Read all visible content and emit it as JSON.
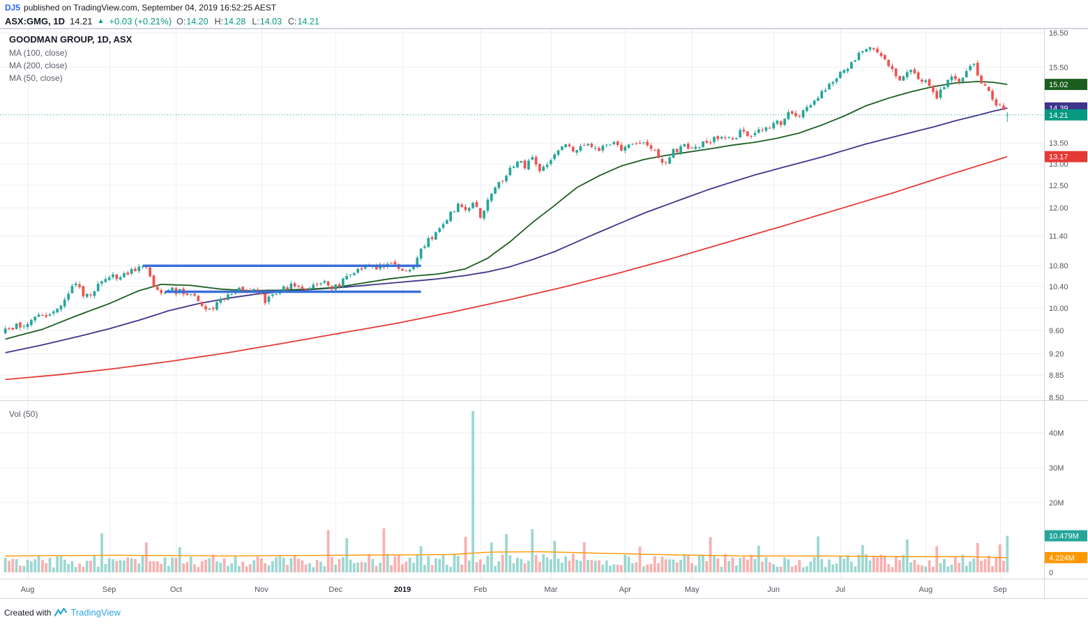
{
  "page": {
    "publish_bar": {
      "author": "DJ5",
      "text": "published on TradingView.com, September 04, 2019 16:52:25 AEST"
    },
    "symbol_bar": {
      "symbol": "ASX:GMG, 1D",
      "last": "14.21",
      "arrow": "▲",
      "change": "+0.03 (+0.21%)",
      "ohlc": [
        {
          "label": "O:",
          "value": "14.20"
        },
        {
          "label": "H:",
          "value": "14.28"
        },
        {
          "label": "L:",
          "value": "14.03"
        },
        {
          "label": "C:",
          "value": "14.21"
        }
      ]
    },
    "legend": {
      "title": "GOODMAN GROUP, 1D, ASX",
      "overlays": [
        "MA (100, close)",
        "MA (200, close)",
        "MA (50, close)"
      ]
    },
    "volume_legend": "Vol (50)",
    "footer": {
      "created_with": "Created with",
      "brand": "TradingView"
    }
  },
  "chart_data": {
    "type": "candlestick",
    "title": "GOODMAN GROUP, 1D, ASX",
    "symbol": "ASX:GMG",
    "timeframe": "1D",
    "exchange": "ASX",
    "x_range": "Aug 2018 - Sep 2019",
    "bars": 271,
    "price_scale": {
      "min": 8.5,
      "max": 16.5,
      "log": true,
      "ticks": [
        16.5,
        15.5,
        13.5,
        13.0,
        12.5,
        12.0,
        11.4,
        10.8,
        10.4,
        10.0,
        9.6,
        9.2,
        8.85,
        8.5
      ]
    },
    "price_labels": [
      {
        "value": "15.02",
        "price": 15.02,
        "color": "#1b5e20",
        "series": "MA50"
      },
      {
        "value": "14.39",
        "price": 14.39,
        "color": "#3d348b",
        "series": "MA100"
      },
      {
        "value": "14.21",
        "price": 14.21,
        "color": "#089981",
        "series": "last-price"
      },
      {
        "value": "13.17",
        "price": 13.17,
        "color": "#e53935",
        "series": "MA200"
      }
    ],
    "last_price_line": 14.21,
    "last_bar": {
      "open": 14.2,
      "high": 14.28,
      "low": 14.03,
      "close": 14.21,
      "volume_m": 10.479
    },
    "months": [
      {
        "label": "Aug",
        "bar": 6
      },
      {
        "label": "Sep",
        "bar": 28
      },
      {
        "label": "Oct",
        "bar": 46
      },
      {
        "label": "Nov",
        "bar": 69
      },
      {
        "label": "Dec",
        "bar": 89
      },
      {
        "label": "2019",
        "bar": 107,
        "year": true
      },
      {
        "label": "Feb",
        "bar": 128
      },
      {
        "label": "Mar",
        "bar": 147
      },
      {
        "label": "Apr",
        "bar": 167
      },
      {
        "label": "May",
        "bar": 185
      },
      {
        "label": "Jun",
        "bar": 207
      },
      {
        "label": "Jul",
        "bar": 225
      },
      {
        "label": "Aug",
        "bar": 248
      },
      {
        "label": "Sep",
        "bar": 268
      }
    ],
    "price_anchors": [
      [
        0,
        9.6
      ],
      [
        4,
        9.7
      ],
      [
        8,
        9.8
      ],
      [
        12,
        9.92
      ],
      [
        15,
        10.02
      ],
      [
        17,
        10.32
      ],
      [
        19,
        10.45
      ],
      [
        21,
        10.22
      ],
      [
        23,
        10.28
      ],
      [
        26,
        10.45
      ],
      [
        28,
        10.55
      ],
      [
        31,
        10.62
      ],
      [
        34,
        10.68
      ],
      [
        37,
        10.76
      ],
      [
        39,
        10.65
      ],
      [
        40,
        10.38
      ],
      [
        42,
        10.24
      ],
      [
        45,
        10.33
      ],
      [
        48,
        10.28
      ],
      [
        51,
        10.2
      ],
      [
        54,
        10.0
      ],
      [
        55,
        9.97
      ],
      [
        57,
        10.08
      ],
      [
        60,
        10.26
      ],
      [
        63,
        10.34
      ],
      [
        66,
        10.3
      ],
      [
        68,
        10.3
      ],
      [
        70,
        10.12
      ],
      [
        72,
        10.26
      ],
      [
        75,
        10.35
      ],
      [
        77,
        10.42
      ],
      [
        80,
        10.34
      ],
      [
        83,
        10.42
      ],
      [
        86,
        10.45
      ],
      [
        88,
        10.36
      ],
      [
        90,
        10.45
      ],
      [
        92,
        10.55
      ],
      [
        95,
        10.74
      ],
      [
        98,
        10.85
      ],
      [
        100,
        10.72
      ],
      [
        102,
        10.82
      ],
      [
        104,
        10.88
      ],
      [
        106,
        10.72
      ],
      [
        108,
        10.68
      ],
      [
        110,
        10.74
      ],
      [
        112,
        11.12
      ],
      [
        114,
        11.3
      ],
      [
        116,
        11.48
      ],
      [
        118,
        11.65
      ],
      [
        120,
        11.88
      ],
      [
        122,
        12.05
      ],
      [
        124,
        11.92
      ],
      [
        126,
        12.12
      ],
      [
        128,
        11.82
      ],
      [
        130,
        12.18
      ],
      [
        132,
        12.42
      ],
      [
        134,
        12.6
      ],
      [
        136,
        12.88
      ],
      [
        138,
        13.08
      ],
      [
        140,
        12.95
      ],
      [
        142,
        13.22
      ],
      [
        144,
        12.82
      ],
      [
        146,
        12.95
      ],
      [
        148,
        13.28
      ],
      [
        151,
        13.42
      ],
      [
        154,
        13.3
      ],
      [
        157,
        13.48
      ],
      [
        160,
        13.38
      ],
      [
        163,
        13.52
      ],
      [
        166,
        13.36
      ],
      [
        169,
        13.46
      ],
      [
        172,
        13.54
      ],
      [
        174,
        13.38
      ],
      [
        176,
        13.12
      ],
      [
        178,
        13.05
      ],
      [
        180,
        13.28
      ],
      [
        183,
        13.42
      ],
      [
        186,
        13.38
      ],
      [
        189,
        13.52
      ],
      [
        192,
        13.65
      ],
      [
        195,
        13.58
      ],
      [
        198,
        13.76
      ],
      [
        201,
        13.7
      ],
      [
        204,
        13.85
      ],
      [
        207,
        13.95
      ],
      [
        209,
        14.02
      ],
      [
        211,
        14.22
      ],
      [
        213,
        14.12
      ],
      [
        215,
        14.3
      ],
      [
        217,
        14.5
      ],
      [
        219,
        14.68
      ],
      [
        221,
        14.88
      ],
      [
        223,
        15.05
      ],
      [
        225,
        15.3
      ],
      [
        227,
        15.48
      ],
      [
        229,
        15.7
      ],
      [
        231,
        15.95
      ],
      [
        233,
        16.1
      ],
      [
        235,
        15.92
      ],
      [
        237,
        15.72
      ],
      [
        239,
        15.45
      ],
      [
        241,
        15.18
      ],
      [
        243,
        15.42
      ],
      [
        245,
        15.28
      ],
      [
        247,
        15.12
      ],
      [
        249,
        15.05
      ],
      [
        251,
        14.68
      ],
      [
        253,
        14.98
      ],
      [
        255,
        15.22
      ],
      [
        257,
        15.08
      ],
      [
        259,
        15.38
      ],
      [
        261,
        15.52
      ],
      [
        262,
        15.3
      ],
      [
        264,
        14.92
      ],
      [
        266,
        14.62
      ],
      [
        268,
        14.42
      ],
      [
        270,
        14.21
      ]
    ],
    "ma50": {
      "name": "MA (50, close)",
      "color": "#1b5e20",
      "last": 15.02,
      "anchors": [
        [
          0,
          9.45
        ],
        [
          10,
          9.62
        ],
        [
          20,
          9.88
        ],
        [
          28,
          10.08
        ],
        [
          36,
          10.32
        ],
        [
          42,
          10.44
        ],
        [
          50,
          10.42
        ],
        [
          58,
          10.35
        ],
        [
          66,
          10.32
        ],
        [
          74,
          10.33
        ],
        [
          82,
          10.35
        ],
        [
          89,
          10.38
        ],
        [
          96,
          10.46
        ],
        [
          103,
          10.54
        ],
        [
          110,
          10.6
        ],
        [
          117,
          10.64
        ],
        [
          124,
          10.74
        ],
        [
          130,
          10.95
        ],
        [
          136,
          11.28
        ],
        [
          142,
          11.68
        ],
        [
          148,
          12.05
        ],
        [
          154,
          12.45
        ],
        [
          160,
          12.72
        ],
        [
          166,
          12.95
        ],
        [
          172,
          13.1
        ],
        [
          178,
          13.2
        ],
        [
          184,
          13.28
        ],
        [
          190,
          13.36
        ],
        [
          196,
          13.45
        ],
        [
          202,
          13.52
        ],
        [
          208,
          13.62
        ],
        [
          214,
          13.75
        ],
        [
          220,
          13.95
        ],
        [
          226,
          14.18
        ],
        [
          232,
          14.45
        ],
        [
          238,
          14.65
        ],
        [
          244,
          14.82
        ],
        [
          250,
          14.96
        ],
        [
          256,
          15.06
        ],
        [
          262,
          15.1
        ],
        [
          266,
          15.08
        ],
        [
          270,
          15.02
        ]
      ]
    },
    "ma100": {
      "name": "MA (100, close)",
      "color": "#3d348b",
      "last": 14.39,
      "anchors": [
        [
          0,
          9.22
        ],
        [
          10,
          9.35
        ],
        [
          20,
          9.5
        ],
        [
          28,
          9.63
        ],
        [
          36,
          9.78
        ],
        [
          44,
          9.95
        ],
        [
          52,
          10.08
        ],
        [
          60,
          10.18
        ],
        [
          68,
          10.26
        ],
        [
          76,
          10.31
        ],
        [
          84,
          10.35
        ],
        [
          92,
          10.39
        ],
        [
          100,
          10.44
        ],
        [
          108,
          10.49
        ],
        [
          116,
          10.54
        ],
        [
          124,
          10.61
        ],
        [
          130,
          10.68
        ],
        [
          136,
          10.78
        ],
        [
          142,
          10.92
        ],
        [
          148,
          11.08
        ],
        [
          154,
          11.28
        ],
        [
          160,
          11.48
        ],
        [
          166,
          11.68
        ],
        [
          172,
          11.88
        ],
        [
          178,
          12.06
        ],
        [
          184,
          12.24
        ],
        [
          190,
          12.42
        ],
        [
          196,
          12.58
        ],
        [
          202,
          12.74
        ],
        [
          208,
          12.88
        ],
        [
          214,
          13.02
        ],
        [
          220,
          13.16
        ],
        [
          226,
          13.32
        ],
        [
          232,
          13.48
        ],
        [
          238,
          13.62
        ],
        [
          244,
          13.76
        ],
        [
          250,
          13.9
        ],
        [
          256,
          14.06
        ],
        [
          262,
          14.2
        ],
        [
          266,
          14.3
        ],
        [
          270,
          14.39
        ]
      ]
    },
    "ma200": {
      "name": "MA (200, close)",
      "color": "#e53935",
      "last": 13.17,
      "anchors": [
        [
          0,
          8.78
        ],
        [
          15,
          8.86
        ],
        [
          30,
          8.96
        ],
        [
          45,
          9.08
        ],
        [
          60,
          9.22
        ],
        [
          75,
          9.38
        ],
        [
          90,
          9.55
        ],
        [
          105,
          9.72
        ],
        [
          120,
          9.92
        ],
        [
          135,
          10.14
        ],
        [
          150,
          10.38
        ],
        [
          165,
          10.65
        ],
        [
          180,
          10.95
        ],
        [
          195,
          11.28
        ],
        [
          210,
          11.62
        ],
        [
          225,
          11.98
        ],
        [
          240,
          12.35
        ],
        [
          252,
          12.68
        ],
        [
          262,
          12.95
        ],
        [
          270,
          13.17
        ]
      ]
    },
    "support_lines": [
      {
        "price": 10.8,
        "from": 37,
        "to": 112,
        "color": "#3a6fd8"
      },
      {
        "price": 10.3,
        "from": 43,
        "to": 112,
        "color": "#3a6fd8"
      }
    ],
    "volume": {
      "unit": "M",
      "ticks": [
        {
          "label": "40M",
          "value": 40
        },
        {
          "label": "30M",
          "value": 30
        },
        {
          "label": "20M",
          "value": 20
        },
        {
          "label": "0",
          "value": 0
        }
      ],
      "labels": [
        {
          "value": "10.479M",
          "v": 10.479,
          "color": "#26a69a",
          "series": "current-volume"
        },
        {
          "value": "4.224M",
          "v": 4.224,
          "color": "#ff9800",
          "series": "volume-ma"
        }
      ],
      "base_anchors": [
        [
          0,
          3.0
        ],
        [
          126,
          3.4
        ],
        [
          270,
          3.2
        ]
      ],
      "spikes": [
        [
          26,
          11.2
        ],
        [
          38,
          8.6
        ],
        [
          47,
          7.2
        ],
        [
          87,
          12.1
        ],
        [
          92,
          9.8
        ],
        [
          102,
          12.6
        ],
        [
          112,
          7.5
        ],
        [
          124,
          10.2
        ],
        [
          126,
          46.3
        ],
        [
          131,
          8.6
        ],
        [
          135,
          11.0
        ],
        [
          142,
          12.4
        ],
        [
          148,
          9.0
        ],
        [
          156,
          8.6
        ],
        [
          171,
          7.4
        ],
        [
          190,
          10.1
        ],
        [
          203,
          7.6
        ],
        [
          219,
          10.3
        ],
        [
          231,
          7.8
        ],
        [
          243,
          9.4
        ],
        [
          251,
          7.5
        ],
        [
          262,
          8.4
        ],
        [
          268,
          8.0
        ]
      ],
      "ma": {
        "name": "Vol MA (50)",
        "color": "#ff9800",
        "last": 4.224,
        "anchors": [
          [
            0,
            4.7
          ],
          [
            30,
            4.9
          ],
          [
            60,
            4.7
          ],
          [
            90,
            4.9
          ],
          [
            120,
            5.1
          ],
          [
            130,
            5.8
          ],
          [
            145,
            5.9
          ],
          [
            160,
            5.5
          ],
          [
            180,
            5.0
          ],
          [
            200,
            4.7
          ],
          [
            220,
            4.7
          ],
          [
            240,
            4.5
          ],
          [
            258,
            4.5
          ],
          [
            270,
            4.224
          ]
        ]
      }
    },
    "colors": {
      "up": "#26a69a",
      "down": "#ef5350",
      "vol_up": "rgba(38,166,154,0.45)",
      "vol_down": "rgba(239,83,80,0.45)",
      "grid": "#edeff3",
      "frame": "#d1d4dc",
      "axis_text": "#50535e"
    }
  }
}
